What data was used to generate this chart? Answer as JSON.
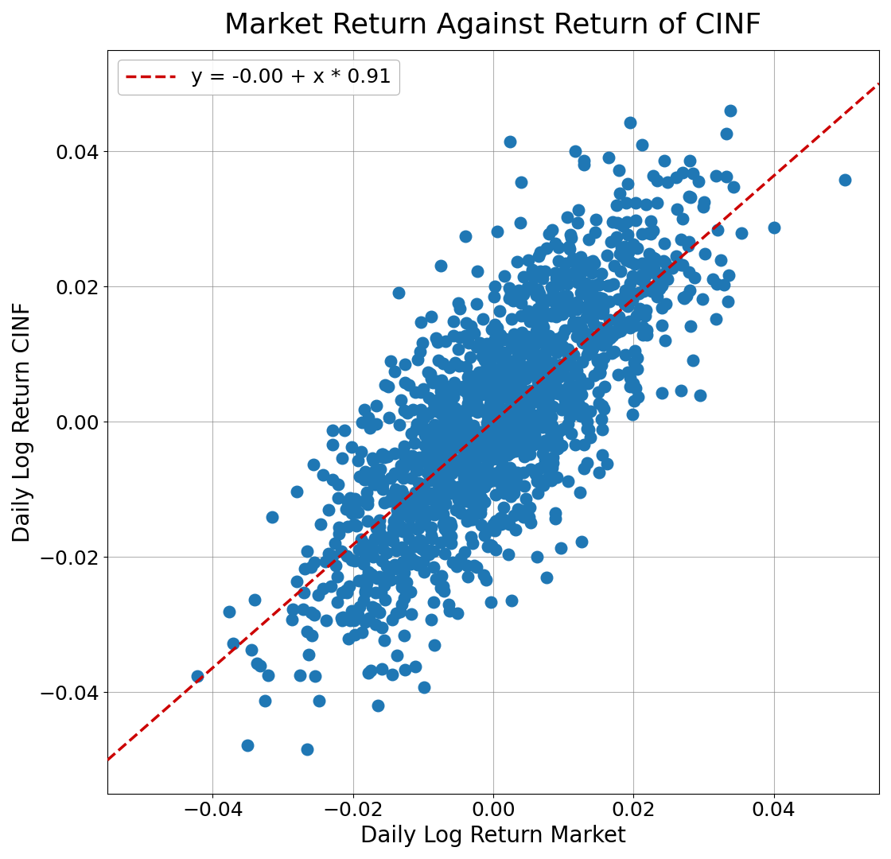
{
  "title": "Market Return Against Return of CINF",
  "xlabel": "Daily Log Return Market",
  "ylabel": "Daily Log Return CINF",
  "legend_label": "y = -0.00 + x * 0.91",
  "intercept": -0.0,
  "slope": 0.91,
  "xlim": [
    -0.055,
    0.055
  ],
  "ylim": [
    -0.055,
    0.055
  ],
  "xticks": [
    -0.04,
    -0.02,
    0.0,
    0.02,
    0.04
  ],
  "yticks": [
    -0.04,
    -0.02,
    0.0,
    0.02,
    0.04
  ],
  "scatter_color": "#1f77b4",
  "line_color": "#cc0000",
  "n_points": 1500,
  "seed": 42,
  "market_std": 0.013,
  "residual_std": 0.01,
  "dot_size": 110,
  "title_fontsize": 26,
  "label_fontsize": 20,
  "tick_fontsize": 18,
  "legend_fontsize": 18
}
